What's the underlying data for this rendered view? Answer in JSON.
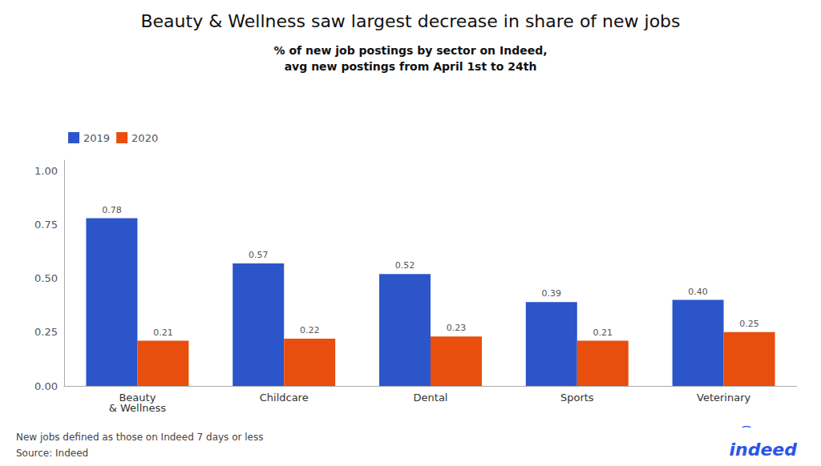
{
  "chart_data": {
    "type": "bar",
    "title": "Beauty & Wellness saw largest decrease in share of new jobs",
    "subtitle": "% of new job postings by sector on Indeed,\navg new postings from April 1st to 24th",
    "categories": [
      "Beauty\n& Wellness",
      "Childcare",
      "Dental",
      "Sports",
      "Veterinary"
    ],
    "series": [
      {
        "name": "2019",
        "color": "#2b55c9",
        "values": [
          0.78,
          0.57,
          0.52,
          0.39,
          0.4
        ],
        "value_labels": [
          "0.78",
          "0.57",
          "0.52",
          "0.39",
          "0.40"
        ]
      },
      {
        "name": "2020",
        "color": "#e84e0e",
        "values": [
          0.21,
          0.22,
          0.23,
          0.21,
          0.25
        ],
        "value_labels": [
          "0.21",
          "0.22",
          "0.23",
          "0.21",
          "0.25"
        ]
      }
    ],
    "ylim": [
      0,
      1.05
    ],
    "yticks": [
      {
        "value": 0,
        "label": "0.00"
      },
      {
        "value": 0.25,
        "label": "0.25"
      },
      {
        "value": 0.5,
        "label": "0.50"
      },
      {
        "value": 0.75,
        "label": "0.75"
      },
      {
        "value": 1,
        "label": "1.00"
      }
    ],
    "grid": false,
    "legend": "upper left",
    "data_labels": true,
    "annotations": [
      "New jobs defined as those on Indeed 7 days or less",
      "Source: Indeed",
      "indeed",
      "⁀"
    ]
  }
}
